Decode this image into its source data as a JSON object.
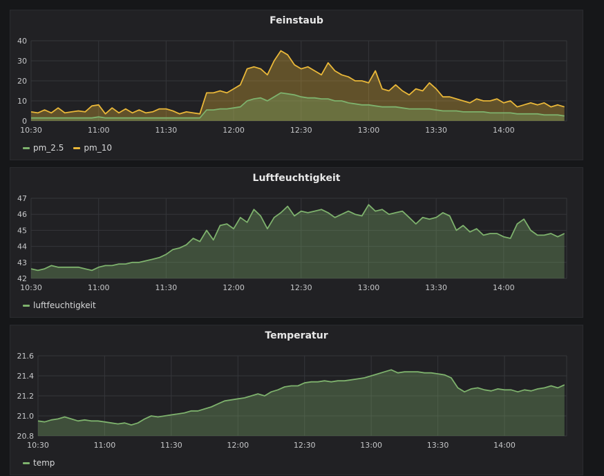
{
  "chart_data": [
    {
      "type": "area",
      "title": "Feinstaub",
      "x_ticks": [
        "10:30",
        "11:00",
        "11:30",
        "12:00",
        "12:30",
        "13:00",
        "13:30",
        "14:00"
      ],
      "y_ticks": [
        "0",
        "10",
        "20",
        "30",
        "40"
      ],
      "ylim": [
        0,
        40
      ],
      "xlim": [
        "10:30",
        "14:28"
      ],
      "grid": true,
      "legend": "bottom-left",
      "x": [
        "10:30",
        "10:33",
        "10:36",
        "10:39",
        "10:42",
        "10:45",
        "10:48",
        "10:51",
        "10:54",
        "10:57",
        "11:00",
        "11:03",
        "11:06",
        "11:09",
        "11:12",
        "11:15",
        "11:18",
        "11:21",
        "11:24",
        "11:27",
        "11:30",
        "11:33",
        "11:36",
        "11:39",
        "11:42",
        "11:45",
        "11:48",
        "11:51",
        "11:54",
        "11:57",
        "12:00",
        "12:03",
        "12:06",
        "12:09",
        "12:12",
        "12:15",
        "12:18",
        "12:21",
        "12:24",
        "12:27",
        "12:30",
        "12:33",
        "12:36",
        "12:39",
        "12:42",
        "12:45",
        "12:48",
        "12:51",
        "12:54",
        "12:57",
        "13:00",
        "13:03",
        "13:06",
        "13:09",
        "13:12",
        "13:15",
        "13:18",
        "13:21",
        "13:24",
        "13:27",
        "13:30",
        "13:33",
        "13:36",
        "13:39",
        "13:42",
        "13:45",
        "13:48",
        "13:51",
        "13:54",
        "13:57",
        "14:00",
        "14:03",
        "14:06",
        "14:09",
        "14:12",
        "14:15",
        "14:18",
        "14:21",
        "14:24",
        "14:27"
      ],
      "series": [
        {
          "name": "pm_10",
          "color": "#eab839",
          "values": [
            4.5,
            4,
            5.5,
            4,
            6.5,
            4,
            4.5,
            5,
            4.5,
            7.5,
            8,
            3.5,
            6.5,
            4,
            6,
            4,
            5.5,
            4,
            4.5,
            6,
            6,
            5,
            3.5,
            4.5,
            4,
            3.5,
            14,
            14,
            15,
            14,
            16,
            18,
            26,
            27,
            26,
            23,
            30,
            35,
            33,
            28,
            26,
            27,
            25,
            23,
            29,
            25,
            23,
            22,
            20,
            20,
            19,
            25,
            16,
            15,
            18,
            15,
            13,
            16,
            15,
            19,
            16,
            12,
            12,
            11,
            10,
            9,
            11,
            10,
            10,
            11,
            9,
            10,
            7,
            8,
            9,
            8,
            9,
            7,
            8,
            7
          ]
        },
        {
          "name": "pm_2.5",
          "color": "#7eb26d",
          "values": [
            1.5,
            1.5,
            1.5,
            1.5,
            1.5,
            1.5,
            1.5,
            1.5,
            1.5,
            1.5,
            2,
            1.5,
            1.5,
            1.5,
            1.5,
            1.5,
            1.5,
            1.5,
            1.5,
            1.5,
            1.5,
            1.5,
            1.5,
            1.5,
            1.5,
            1.5,
            5.5,
            5.5,
            6,
            6,
            6.5,
            7,
            10,
            11,
            11.5,
            10,
            12,
            14,
            13.5,
            13,
            12,
            11.5,
            11.5,
            11,
            11,
            10,
            10,
            9,
            8.5,
            8,
            8,
            7.5,
            7,
            7,
            7,
            6.5,
            6,
            6,
            6,
            6,
            5.5,
            5,
            5,
            5,
            4.5,
            4.5,
            4.5,
            4.5,
            4,
            4,
            4,
            4,
            3.5,
            3.5,
            3.5,
            3.5,
            3,
            3,
            3,
            2.5
          ]
        }
      ]
    },
    {
      "type": "area",
      "title": "Luftfeuchtigkeit",
      "x_ticks": [
        "10:30",
        "11:00",
        "11:30",
        "12:00",
        "12:30",
        "13:00",
        "13:30",
        "14:00"
      ],
      "y_ticks": [
        "42",
        "43",
        "44",
        "45",
        "46",
        "47"
      ],
      "ylim": [
        42,
        47
      ],
      "xlim": [
        "10:30",
        "14:28"
      ],
      "grid": true,
      "legend": "bottom-left",
      "x": [
        "10:30",
        "10:33",
        "10:36",
        "10:39",
        "10:42",
        "10:45",
        "10:48",
        "10:51",
        "10:54",
        "10:57",
        "11:00",
        "11:03",
        "11:06",
        "11:09",
        "11:12",
        "11:15",
        "11:18",
        "11:21",
        "11:24",
        "11:27",
        "11:30",
        "11:33",
        "11:36",
        "11:39",
        "11:42",
        "11:45",
        "11:48",
        "11:51",
        "11:54",
        "11:57",
        "12:00",
        "12:03",
        "12:06",
        "12:09",
        "12:12",
        "12:15",
        "12:18",
        "12:21",
        "12:24",
        "12:27",
        "12:30",
        "12:33",
        "12:36",
        "12:39",
        "12:42",
        "12:45",
        "12:48",
        "12:51",
        "12:54",
        "12:57",
        "13:00",
        "13:03",
        "13:06",
        "13:09",
        "13:12",
        "13:15",
        "13:18",
        "13:21",
        "13:24",
        "13:27",
        "13:30",
        "13:33",
        "13:36",
        "13:39",
        "13:42",
        "13:45",
        "13:48",
        "13:51",
        "13:54",
        "13:57",
        "14:00",
        "14:03",
        "14:06",
        "14:09",
        "14:12",
        "14:15",
        "14:18",
        "14:21",
        "14:24",
        "14:27"
      ],
      "series": [
        {
          "name": "luftfeuchtigkeit",
          "color": "#7eb26d",
          "values": [
            42.6,
            42.5,
            42.6,
            42.8,
            42.7,
            42.7,
            42.7,
            42.7,
            42.6,
            42.5,
            42.7,
            42.8,
            42.8,
            42.9,
            42.9,
            43,
            43,
            43.1,
            43.2,
            43.3,
            43.5,
            43.8,
            43.9,
            44.1,
            44.5,
            44.3,
            45,
            44.4,
            45.3,
            45.4,
            45.1,
            45.8,
            45.5,
            46.3,
            45.9,
            45.1,
            45.8,
            46.1,
            46.5,
            45.9,
            46.2,
            46.1,
            46.2,
            46.3,
            46.1,
            45.8,
            46,
            46.2,
            46,
            45.9,
            46.6,
            46.2,
            46.3,
            46,
            46.1,
            46.2,
            45.8,
            45.4,
            45.8,
            45.7,
            45.8,
            46.1,
            45.9,
            45,
            45.3,
            44.9,
            45.1,
            44.7,
            44.8,
            44.8,
            44.6,
            44.5,
            45.4,
            45.7,
            45,
            44.7,
            44.7,
            44.8,
            44.6,
            44.8
          ]
        }
      ]
    },
    {
      "type": "area",
      "title": "Temperatur",
      "x_ticks": [
        "10:30",
        "11:00",
        "11:30",
        "12:00",
        "12:30",
        "13:00",
        "13:30",
        "14:00"
      ],
      "y_ticks": [
        "20.8",
        "21.0",
        "21.2",
        "21.4",
        "21.6"
      ],
      "ylim": [
        20.8,
        21.6
      ],
      "xlim": [
        "10:30",
        "14:28"
      ],
      "grid": true,
      "legend": "bottom-left",
      "x": [
        "10:30",
        "10:33",
        "10:36",
        "10:39",
        "10:42",
        "10:45",
        "10:48",
        "10:51",
        "10:54",
        "10:57",
        "11:00",
        "11:03",
        "11:06",
        "11:09",
        "11:12",
        "11:15",
        "11:18",
        "11:21",
        "11:24",
        "11:27",
        "11:30",
        "11:33",
        "11:36",
        "11:39",
        "11:42",
        "11:45",
        "11:48",
        "11:51",
        "11:54",
        "11:57",
        "12:00",
        "12:03",
        "12:06",
        "12:09",
        "12:12",
        "12:15",
        "12:18",
        "12:21",
        "12:24",
        "12:27",
        "12:30",
        "12:33",
        "12:36",
        "12:39",
        "12:42",
        "12:45",
        "12:48",
        "12:51",
        "12:54",
        "12:57",
        "13:00",
        "13:03",
        "13:06",
        "13:09",
        "13:12",
        "13:15",
        "13:18",
        "13:21",
        "13:24",
        "13:27",
        "13:30",
        "13:33",
        "13:36",
        "13:39",
        "13:42",
        "13:45",
        "13:48",
        "13:51",
        "13:54",
        "13:57",
        "14:00",
        "14:03",
        "14:06",
        "14:09",
        "14:12",
        "14:15",
        "14:18",
        "14:21",
        "14:24",
        "14:27"
      ],
      "series": [
        {
          "name": "temp",
          "color": "#7eb26d",
          "values": [
            20.95,
            20.94,
            20.96,
            20.97,
            20.99,
            20.97,
            20.95,
            20.96,
            20.95,
            20.95,
            20.94,
            20.93,
            20.92,
            20.93,
            20.91,
            20.93,
            20.97,
            21.0,
            20.99,
            21.0,
            21.01,
            21.02,
            21.03,
            21.05,
            21.05,
            21.07,
            21.09,
            21.12,
            21.15,
            21.16,
            21.17,
            21.18,
            21.2,
            21.22,
            21.2,
            21.24,
            21.26,
            21.29,
            21.3,
            21.3,
            21.33,
            21.34,
            21.34,
            21.35,
            21.34,
            21.35,
            21.35,
            21.36,
            21.37,
            21.38,
            21.4,
            21.42,
            21.44,
            21.46,
            21.43,
            21.44,
            21.44,
            21.44,
            21.43,
            21.43,
            21.42,
            21.41,
            21.38,
            21.28,
            21.24,
            21.27,
            21.28,
            21.26,
            21.25,
            21.27,
            21.26,
            21.26,
            21.24,
            21.26,
            21.25,
            21.27,
            21.28,
            21.3,
            21.28,
            21.31
          ]
        }
      ]
    }
  ]
}
